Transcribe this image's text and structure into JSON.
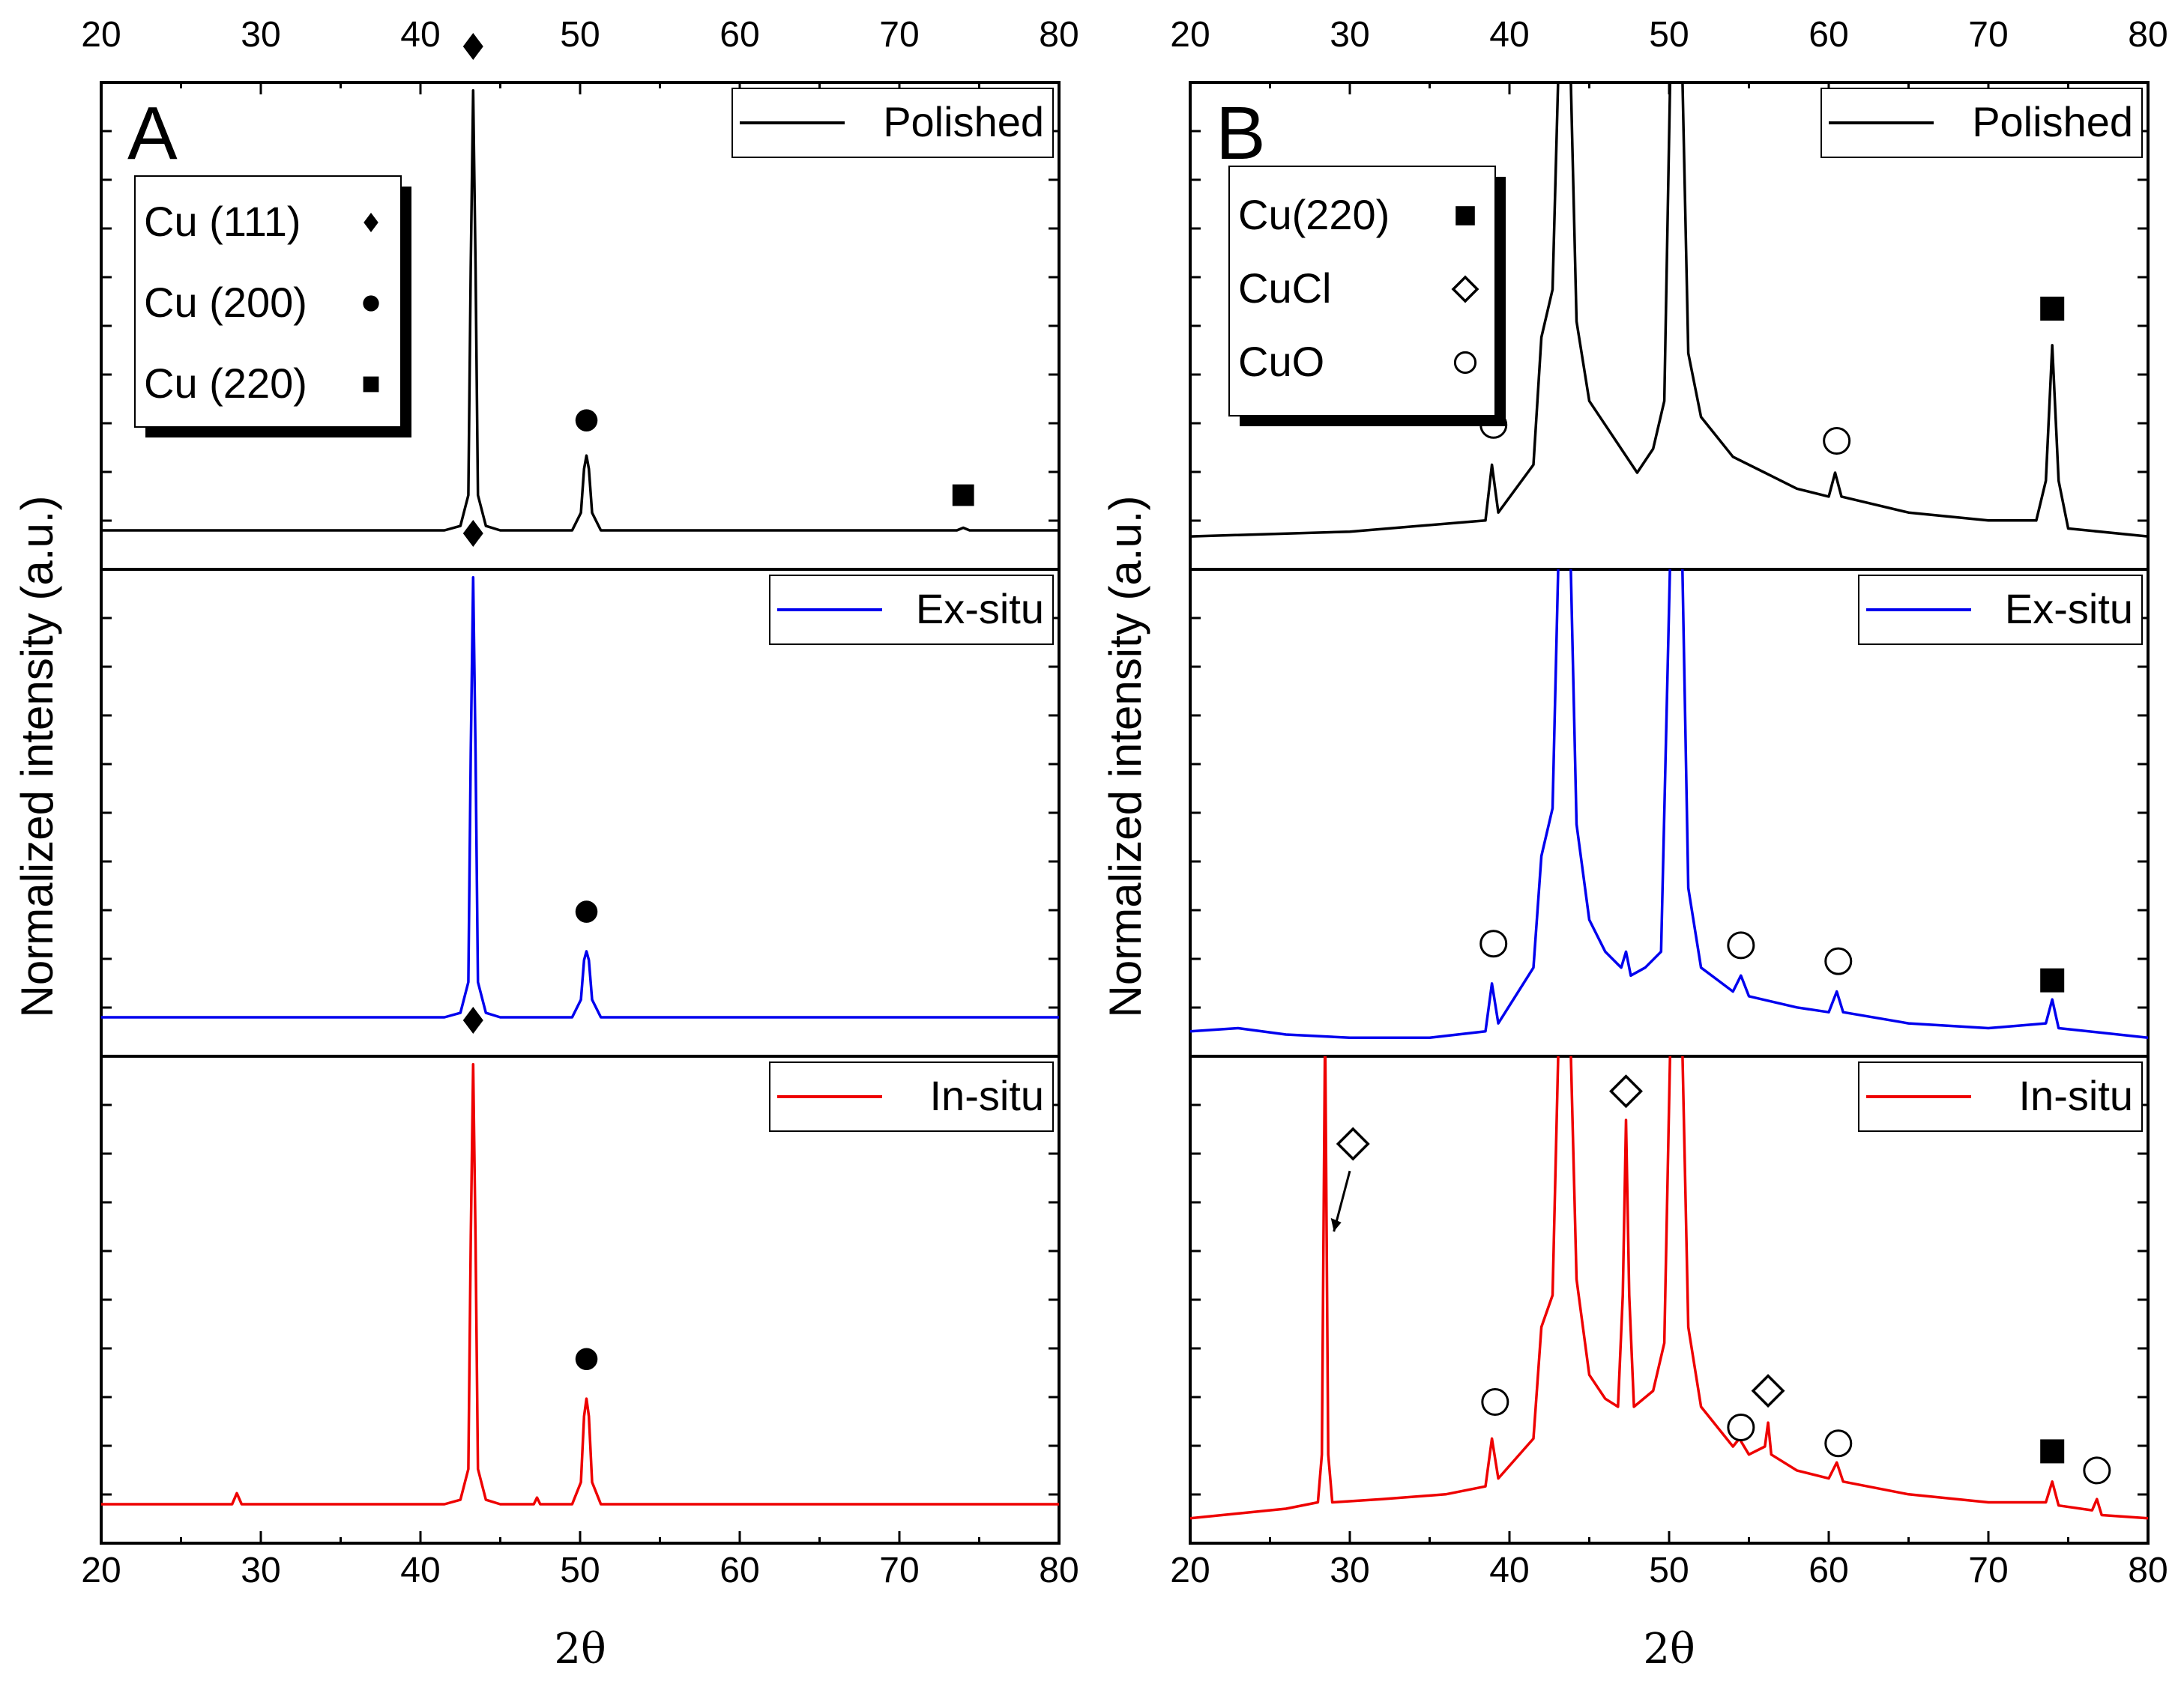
{
  "figure": {
    "y_axis_title": "Normalized intensity (a.u.)",
    "x_axis_title": "2θ"
  },
  "chart_data": [
    {
      "panel": "A",
      "type": "line",
      "xlabel": "2θ",
      "ylabel": "Normalized intensity (a.u.)",
      "xlim": [
        20,
        80
      ],
      "xticks": [
        20,
        30,
        40,
        50,
        60,
        70,
        80
      ],
      "key": [
        {
          "label": "Cu (111)",
          "marker": "diamond"
        },
        {
          "label": "Cu (200)",
          "marker": "circle"
        },
        {
          "label": "Cu (220)",
          "marker": "square"
        }
      ],
      "subplots": [
        {
          "series_name": "Polished",
          "color": "#000000",
          "ylim": [
            0,
            1.1
          ],
          "points": [
            [
              20,
              0
            ],
            [
              28.3,
              0
            ],
            [
              28.5,
              0
            ],
            [
              28.7,
              0
            ],
            [
              41.5,
              0
            ],
            [
              42.5,
              0.01
            ],
            [
              43.0,
              0.08
            ],
            [
              43.15,
              0.6
            ],
            [
              43.3,
              1.0
            ],
            [
              43.45,
              0.6
            ],
            [
              43.6,
              0.08
            ],
            [
              44.1,
              0.01
            ],
            [
              45,
              0
            ],
            [
              47.3,
              0
            ],
            [
              49.5,
              0
            ],
            [
              50.05,
              0.04
            ],
            [
              50.25,
              0.14
            ],
            [
              50.4,
              0.17
            ],
            [
              50.55,
              0.14
            ],
            [
              50.75,
              0.04
            ],
            [
              51.3,
              0
            ],
            [
              73.6,
              0
            ],
            [
              74.0,
              0.006
            ],
            [
              74.4,
              0
            ],
            [
              80,
              0
            ]
          ],
          "peak_markers": [
            {
              "x": 43.3,
              "y": 1.1,
              "marker": "diamond"
            },
            {
              "x": 50.4,
              "y": 0.25,
              "marker": "circle"
            },
            {
              "x": 74.0,
              "y": 0.08,
              "marker": "square"
            }
          ]
        },
        {
          "series_name": "Ex-situ",
          "color": "#0000ee",
          "ylim": [
            0,
            1.1
          ],
          "points": [
            [
              20,
              0
            ],
            [
              41.5,
              0
            ],
            [
              42.5,
              0.01
            ],
            [
              43.0,
              0.08
            ],
            [
              43.15,
              0.6
            ],
            [
              43.3,
              1.0
            ],
            [
              43.45,
              0.6
            ],
            [
              43.6,
              0.08
            ],
            [
              44.1,
              0.01
            ],
            [
              45,
              0
            ],
            [
              49.5,
              0
            ],
            [
              50.05,
              0.04
            ],
            [
              50.25,
              0.13
            ],
            [
              50.4,
              0.15
            ],
            [
              50.55,
              0.13
            ],
            [
              50.75,
              0.04
            ],
            [
              51.3,
              0
            ],
            [
              80,
              0
            ]
          ],
          "peak_markers": [
            {
              "x": 43.3,
              "y": 1.1,
              "marker": "diamond"
            },
            {
              "x": 50.4,
              "y": 0.24,
              "marker": "circle"
            }
          ]
        },
        {
          "series_name": "In-situ",
          "color": "#ee0000",
          "ylim": [
            0,
            1.1
          ],
          "points": [
            [
              20,
              0
            ],
            [
              28.2,
              0
            ],
            [
              28.5,
              0.025
            ],
            [
              28.8,
              0
            ],
            [
              41.5,
              0
            ],
            [
              42.5,
              0.01
            ],
            [
              43.0,
              0.08
            ],
            [
              43.15,
              0.6
            ],
            [
              43.3,
              1.0
            ],
            [
              43.45,
              0.6
            ],
            [
              43.6,
              0.08
            ],
            [
              44.1,
              0.01
            ],
            [
              45,
              0
            ],
            [
              47.1,
              0
            ],
            [
              47.3,
              0.015
            ],
            [
              47.5,
              0
            ],
            [
              49.5,
              0
            ],
            [
              50.05,
              0.05
            ],
            [
              50.25,
              0.2
            ],
            [
              50.4,
              0.24
            ],
            [
              50.55,
              0.2
            ],
            [
              50.75,
              0.05
            ],
            [
              51.3,
              0
            ],
            [
              80,
              0
            ]
          ],
          "peak_markers": [
            {
              "x": 43.3,
              "y": 1.1,
              "marker": "diamond"
            },
            {
              "x": 50.4,
              "y": 0.33,
              "marker": "circle"
            }
          ]
        }
      ]
    },
    {
      "panel": "B",
      "type": "line",
      "xlabel": "2θ",
      "ylabel": "Normalized intensity (a.u.)",
      "xlim": [
        20,
        80
      ],
      "xticks": [
        20,
        30,
        40,
        50,
        60,
        70,
        80
      ],
      "key": [
        {
          "label": "Cu(220)",
          "marker": "square"
        },
        {
          "label": "CuCl",
          "marker": "open-diamond"
        },
        {
          "label": "CuO",
          "marker": "open-circle"
        }
      ],
      "subplots": [
        {
          "series_name": "Polished",
          "color": "#000000",
          "ylim": [
            0,
            0.3
          ],
          "points": [
            [
              20,
              0.015
            ],
            [
              30,
              0.018
            ],
            [
              38.5,
              0.025
            ],
            [
              38.9,
              0.06
            ],
            [
              39.3,
              0.03
            ],
            [
              41.5,
              0.06
            ],
            [
              42.0,
              0.14
            ],
            [
              42.7,
              0.17
            ],
            [
              43.1,
              0.32
            ],
            [
              43.8,
              0.32
            ],
            [
              44.2,
              0.15
            ],
            [
              45,
              0.1
            ],
            [
              46,
              0.085
            ],
            [
              47,
              0.07
            ],
            [
              48,
              0.055
            ],
            [
              49,
              0.07
            ],
            [
              49.7,
              0.1
            ],
            [
              50.1,
              0.32
            ],
            [
              50.8,
              0.32
            ],
            [
              51.2,
              0.13
            ],
            [
              52,
              0.09
            ],
            [
              54,
              0.065
            ],
            [
              56,
              0.055
            ],
            [
              58,
              0.045
            ],
            [
              60,
              0.04
            ],
            [
              60.4,
              0.055
            ],
            [
              60.8,
              0.04
            ],
            [
              65,
              0.03
            ],
            [
              70,
              0.025
            ],
            [
              73,
              0.025
            ],
            [
              73.6,
              0.05
            ],
            [
              74.0,
              0.135
            ],
            [
              74.4,
              0.05
            ],
            [
              75,
              0.02
            ],
            [
              80,
              0.015
            ]
          ],
          "peak_markers": [
            {
              "x": 39.0,
              "y": 0.085,
              "marker": "open-circle"
            },
            {
              "x": 60.5,
              "y": 0.075,
              "marker": "open-circle"
            },
            {
              "x": 74.0,
              "y": 0.158,
              "marker": "square"
            }
          ]
        },
        {
          "series_name": "Ex-situ",
          "color": "#0000ee",
          "ylim": [
            0,
            0.3
          ],
          "points": [
            [
              20,
              0.01
            ],
            [
              23,
              0.012
            ],
            [
              26,
              0.008
            ],
            [
              30,
              0.006
            ],
            [
              35,
              0.006
            ],
            [
              38.5,
              0.01
            ],
            [
              38.9,
              0.04
            ],
            [
              39.3,
              0.015
            ],
            [
              41.5,
              0.05
            ],
            [
              42.0,
              0.12
            ],
            [
              42.7,
              0.15
            ],
            [
              43.1,
              0.32
            ],
            [
              43.8,
              0.32
            ],
            [
              44.2,
              0.14
            ],
            [
              45,
              0.08
            ],
            [
              46,
              0.06
            ],
            [
              47,
              0.05
            ],
            [
              47.3,
              0.06
            ],
            [
              47.6,
              0.045
            ],
            [
              48.5,
              0.05
            ],
            [
              49.5,
              0.06
            ],
            [
              50.1,
              0.32
            ],
            [
              50.8,
              0.32
            ],
            [
              51.2,
              0.1
            ],
            [
              52,
              0.05
            ],
            [
              54,
              0.035
            ],
            [
              54.5,
              0.045
            ],
            [
              55,
              0.032
            ],
            [
              58,
              0.025
            ],
            [
              60,
              0.022
            ],
            [
              60.5,
              0.035
            ],
            [
              60.9,
              0.022
            ],
            [
              65,
              0.015
            ],
            [
              70,
              0.012
            ],
            [
              73.6,
              0.015
            ],
            [
              74.0,
              0.03
            ],
            [
              74.4,
              0.012
            ],
            [
              80,
              0.006
            ]
          ],
          "peak_markers": [
            {
              "x": 39.0,
              "y": 0.065,
              "marker": "open-circle"
            },
            {
              "x": 54.5,
              "y": 0.064,
              "marker": "open-circle"
            },
            {
              "x": 60.6,
              "y": 0.054,
              "marker": "open-circle"
            },
            {
              "x": 74.0,
              "y": 0.042,
              "marker": "square"
            }
          ]
        },
        {
          "series_name": "In-situ",
          "color": "#ee0000",
          "ylim": [
            0,
            0.3
          ],
          "points": [
            [
              20,
              0.01
            ],
            [
              23,
              0.013
            ],
            [
              26,
              0.016
            ],
            [
              28,
              0.02
            ],
            [
              28.25,
              0.05
            ],
            [
              28.45,
              0.32
            ],
            [
              28.65,
              0.05
            ],
            [
              28.9,
              0.02
            ],
            [
              32,
              0.022
            ],
            [
              36,
              0.025
            ],
            [
              38.5,
              0.03
            ],
            [
              38.9,
              0.06
            ],
            [
              39.3,
              0.035
            ],
            [
              41.5,
              0.06
            ],
            [
              42.0,
              0.13
            ],
            [
              42.7,
              0.15
            ],
            [
              43.1,
              0.32
            ],
            [
              43.8,
              0.32
            ],
            [
              44.2,
              0.16
            ],
            [
              45,
              0.1
            ],
            [
              46,
              0.085
            ],
            [
              46.8,
              0.08
            ],
            [
              47.1,
              0.15
            ],
            [
              47.3,
              0.26
            ],
            [
              47.5,
              0.15
            ],
            [
              47.8,
              0.08
            ],
            [
              49,
              0.09
            ],
            [
              49.7,
              0.12
            ],
            [
              50.1,
              0.32
            ],
            [
              50.8,
              0.32
            ],
            [
              51.2,
              0.13
            ],
            [
              52,
              0.08
            ],
            [
              54,
              0.055
            ],
            [
              54.4,
              0.06
            ],
            [
              55,
              0.05
            ],
            [
              56.0,
              0.055
            ],
            [
              56.2,
              0.07
            ],
            [
              56.4,
              0.05
            ],
            [
              58,
              0.04
            ],
            [
              60,
              0.035
            ],
            [
              60.5,
              0.045
            ],
            [
              60.9,
              0.033
            ],
            [
              65,
              0.025
            ],
            [
              70,
              0.02
            ],
            [
              73.6,
              0.02
            ],
            [
              74.0,
              0.033
            ],
            [
              74.4,
              0.018
            ],
            [
              76.5,
              0.015
            ],
            [
              76.8,
              0.022
            ],
            [
              77.1,
              0.012
            ],
            [
              80,
              0.01
            ]
          ],
          "peak_markers": [
            {
              "x": 39.1,
              "y": 0.083,
              "marker": "open-circle"
            },
            {
              "x": 47.3,
              "y": 0.278,
              "marker": "open-diamond"
            },
            {
              "x": 54.5,
              "y": 0.067,
              "marker": "open-circle"
            },
            {
              "x": 56.2,
              "y": 0.09,
              "marker": "open-diamond"
            },
            {
              "x": 60.6,
              "y": 0.057,
              "marker": "open-circle"
            },
            {
              "x": 74.0,
              "y": 0.052,
              "marker": "square"
            },
            {
              "x": 76.8,
              "y": 0.04,
              "marker": "open-circle"
            },
            {
              "x": 30.2,
              "y": 0.245,
              "marker": "open-diamond"
            }
          ]
        }
      ]
    }
  ]
}
